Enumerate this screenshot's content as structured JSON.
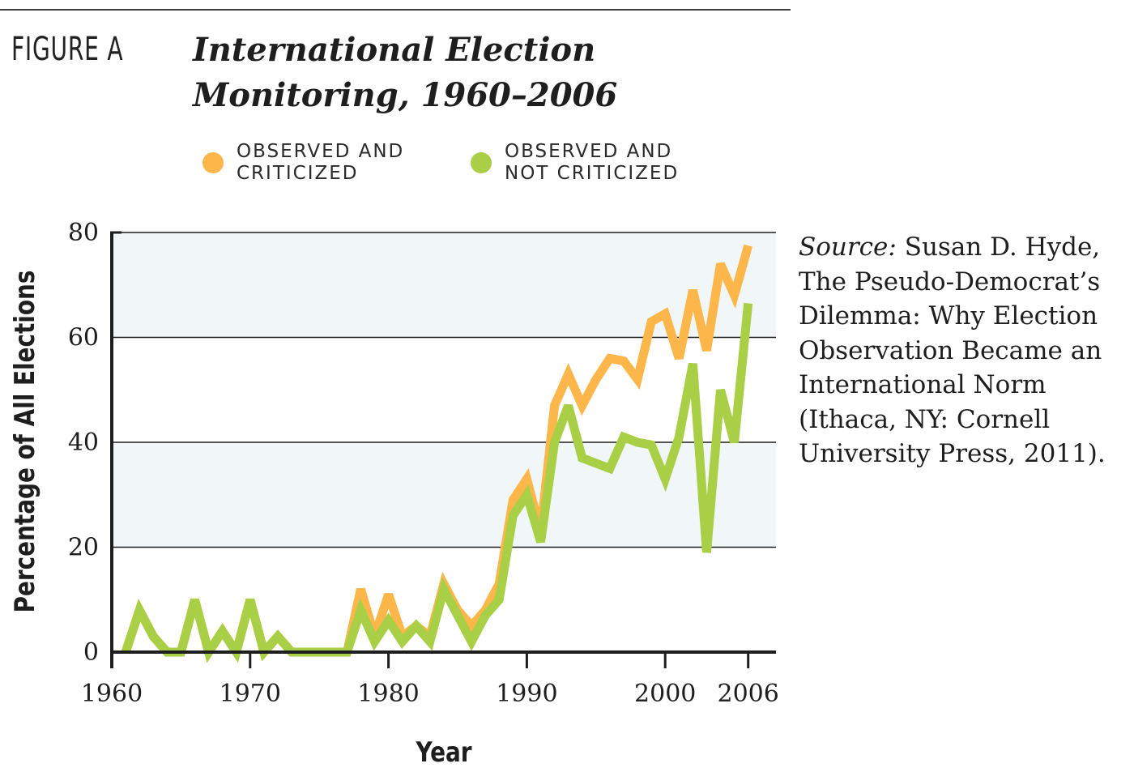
{
  "figure": {
    "label": "FIGURE A",
    "title": "International Election Monitoring, 1960–2006"
  },
  "legend": [
    {
      "label": "OBSERVED AND\nCRITICIZED",
      "color": "#FDB64A"
    },
    {
      "label": "OBSERVED AND\nNOT CRITICIZED",
      "color": "#A8CF45"
    }
  ],
  "source": {
    "label": "Source:",
    "text": "Susan D. Hyde, The Pseudo-Democrat’s Dilemma: Why Election Observation Became an International Norm (Ithaca, NY: Cornell University Press, 2011)."
  },
  "colors": {
    "band": "#F1F7F9",
    "gridline": "#1e1e1e",
    "axis": "#1e1e1e"
  },
  "chart_data": {
    "type": "line",
    "title": "International Election Monitoring, 1960–2006",
    "xlabel": "Year",
    "ylabel": "Percentage of All Elections",
    "xlim": [
      1960,
      2008
    ],
    "ylim": [
      0,
      80
    ],
    "x_ticks": [
      1960,
      1970,
      1980,
      1990,
      2000,
      2006
    ],
    "y_ticks": [
      0,
      20,
      40,
      60,
      80
    ],
    "grid": "horizontal",
    "shaded_bands": [
      [
        20,
        40
      ],
      [
        60,
        80
      ]
    ],
    "x": [
      1961,
      1962,
      1963,
      1964,
      1965,
      1966,
      1967,
      1968,
      1969,
      1970,
      1971,
      1972,
      1973,
      1974,
      1975,
      1976,
      1977,
      1978,
      1979,
      1980,
      1981,
      1982,
      1983,
      1984,
      1985,
      1986,
      1987,
      1988,
      1989,
      1990,
      1991,
      1992,
      1993,
      1994,
      1995,
      1996,
      1997,
      1998,
      1999,
      2000,
      2001,
      2002,
      2003,
      2004,
      2005,
      2006
    ],
    "series": [
      {
        "name": "OBSERVED AND CRITICIZED",
        "color": "#FDB64A",
        "values": [
          0,
          8,
          3,
          0,
          0,
          10,
          0,
          4,
          0,
          10,
          0,
          3,
          0,
          0,
          0,
          0,
          0,
          12,
          3,
          11,
          3,
          5,
          3,
          13,
          8,
          5,
          8,
          13,
          29,
          33,
          23,
          47,
          53,
          47,
          52,
          56,
          55.5,
          52,
          63,
          64.5,
          56,
          69,
          57.5,
          74,
          68,
          77.5
        ]
      },
      {
        "name": "OBSERVED AND NOT CRITICIZED",
        "color": "#A8CF45",
        "values": [
          0,
          8,
          3,
          0,
          0,
          10,
          0,
          4,
          0,
          10,
          0,
          3,
          0,
          0,
          0,
          0,
          0,
          8,
          2,
          6,
          2,
          5,
          2,
          12,
          7,
          2,
          7,
          10,
          26,
          30,
          21,
          40,
          47,
          37,
          36,
          35,
          41,
          40,
          39.5,
          33,
          41,
          55,
          19,
          50,
          40,
          66.5
        ]
      }
    ]
  }
}
